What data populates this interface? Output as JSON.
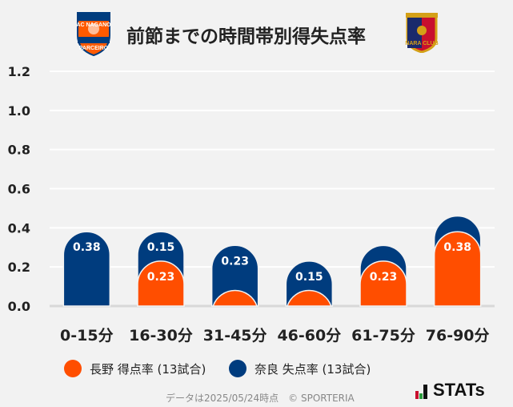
{
  "title": "前節までの時間帯別得失点率",
  "home_logo_text": "AC NAGANO PARCEIRO",
  "away_logo_text": "NARA CLUB",
  "chart_data": {
    "type": "bar",
    "stacked": true,
    "categories": [
      "0-15分",
      "16-30分",
      "31-45分",
      "46-60分",
      "61-75分",
      "76-90分"
    ],
    "series": [
      {
        "name": "長野 得点率 (13試合)",
        "color": "#ff4e00",
        "values": [
          0,
          0.23,
          0.08,
          0.08,
          0.23,
          0.38
        ],
        "labels": [
          "",
          "0.23",
          "",
          "",
          "0.23",
          "0.38"
        ]
      },
      {
        "name": "奈良 失点率 (13試合)",
        "color": "#003c7e",
        "values": [
          0.38,
          0.15,
          0.23,
          0.15,
          0.08,
          0.08
        ],
        "labels": [
          "0.38",
          "0.15",
          "0.23",
          "0.15",
          "",
          ""
        ]
      }
    ],
    "ylim": [
      0,
      1.2
    ],
    "yticks": [
      "0.0",
      "0.2",
      "0.4",
      "0.6",
      "0.8",
      "1.0",
      "1.2"
    ],
    "grid": true,
    "legend": "bottom"
  },
  "footer": "データは2025/05/24時点　© SPORTERIA",
  "brand": "STATs"
}
